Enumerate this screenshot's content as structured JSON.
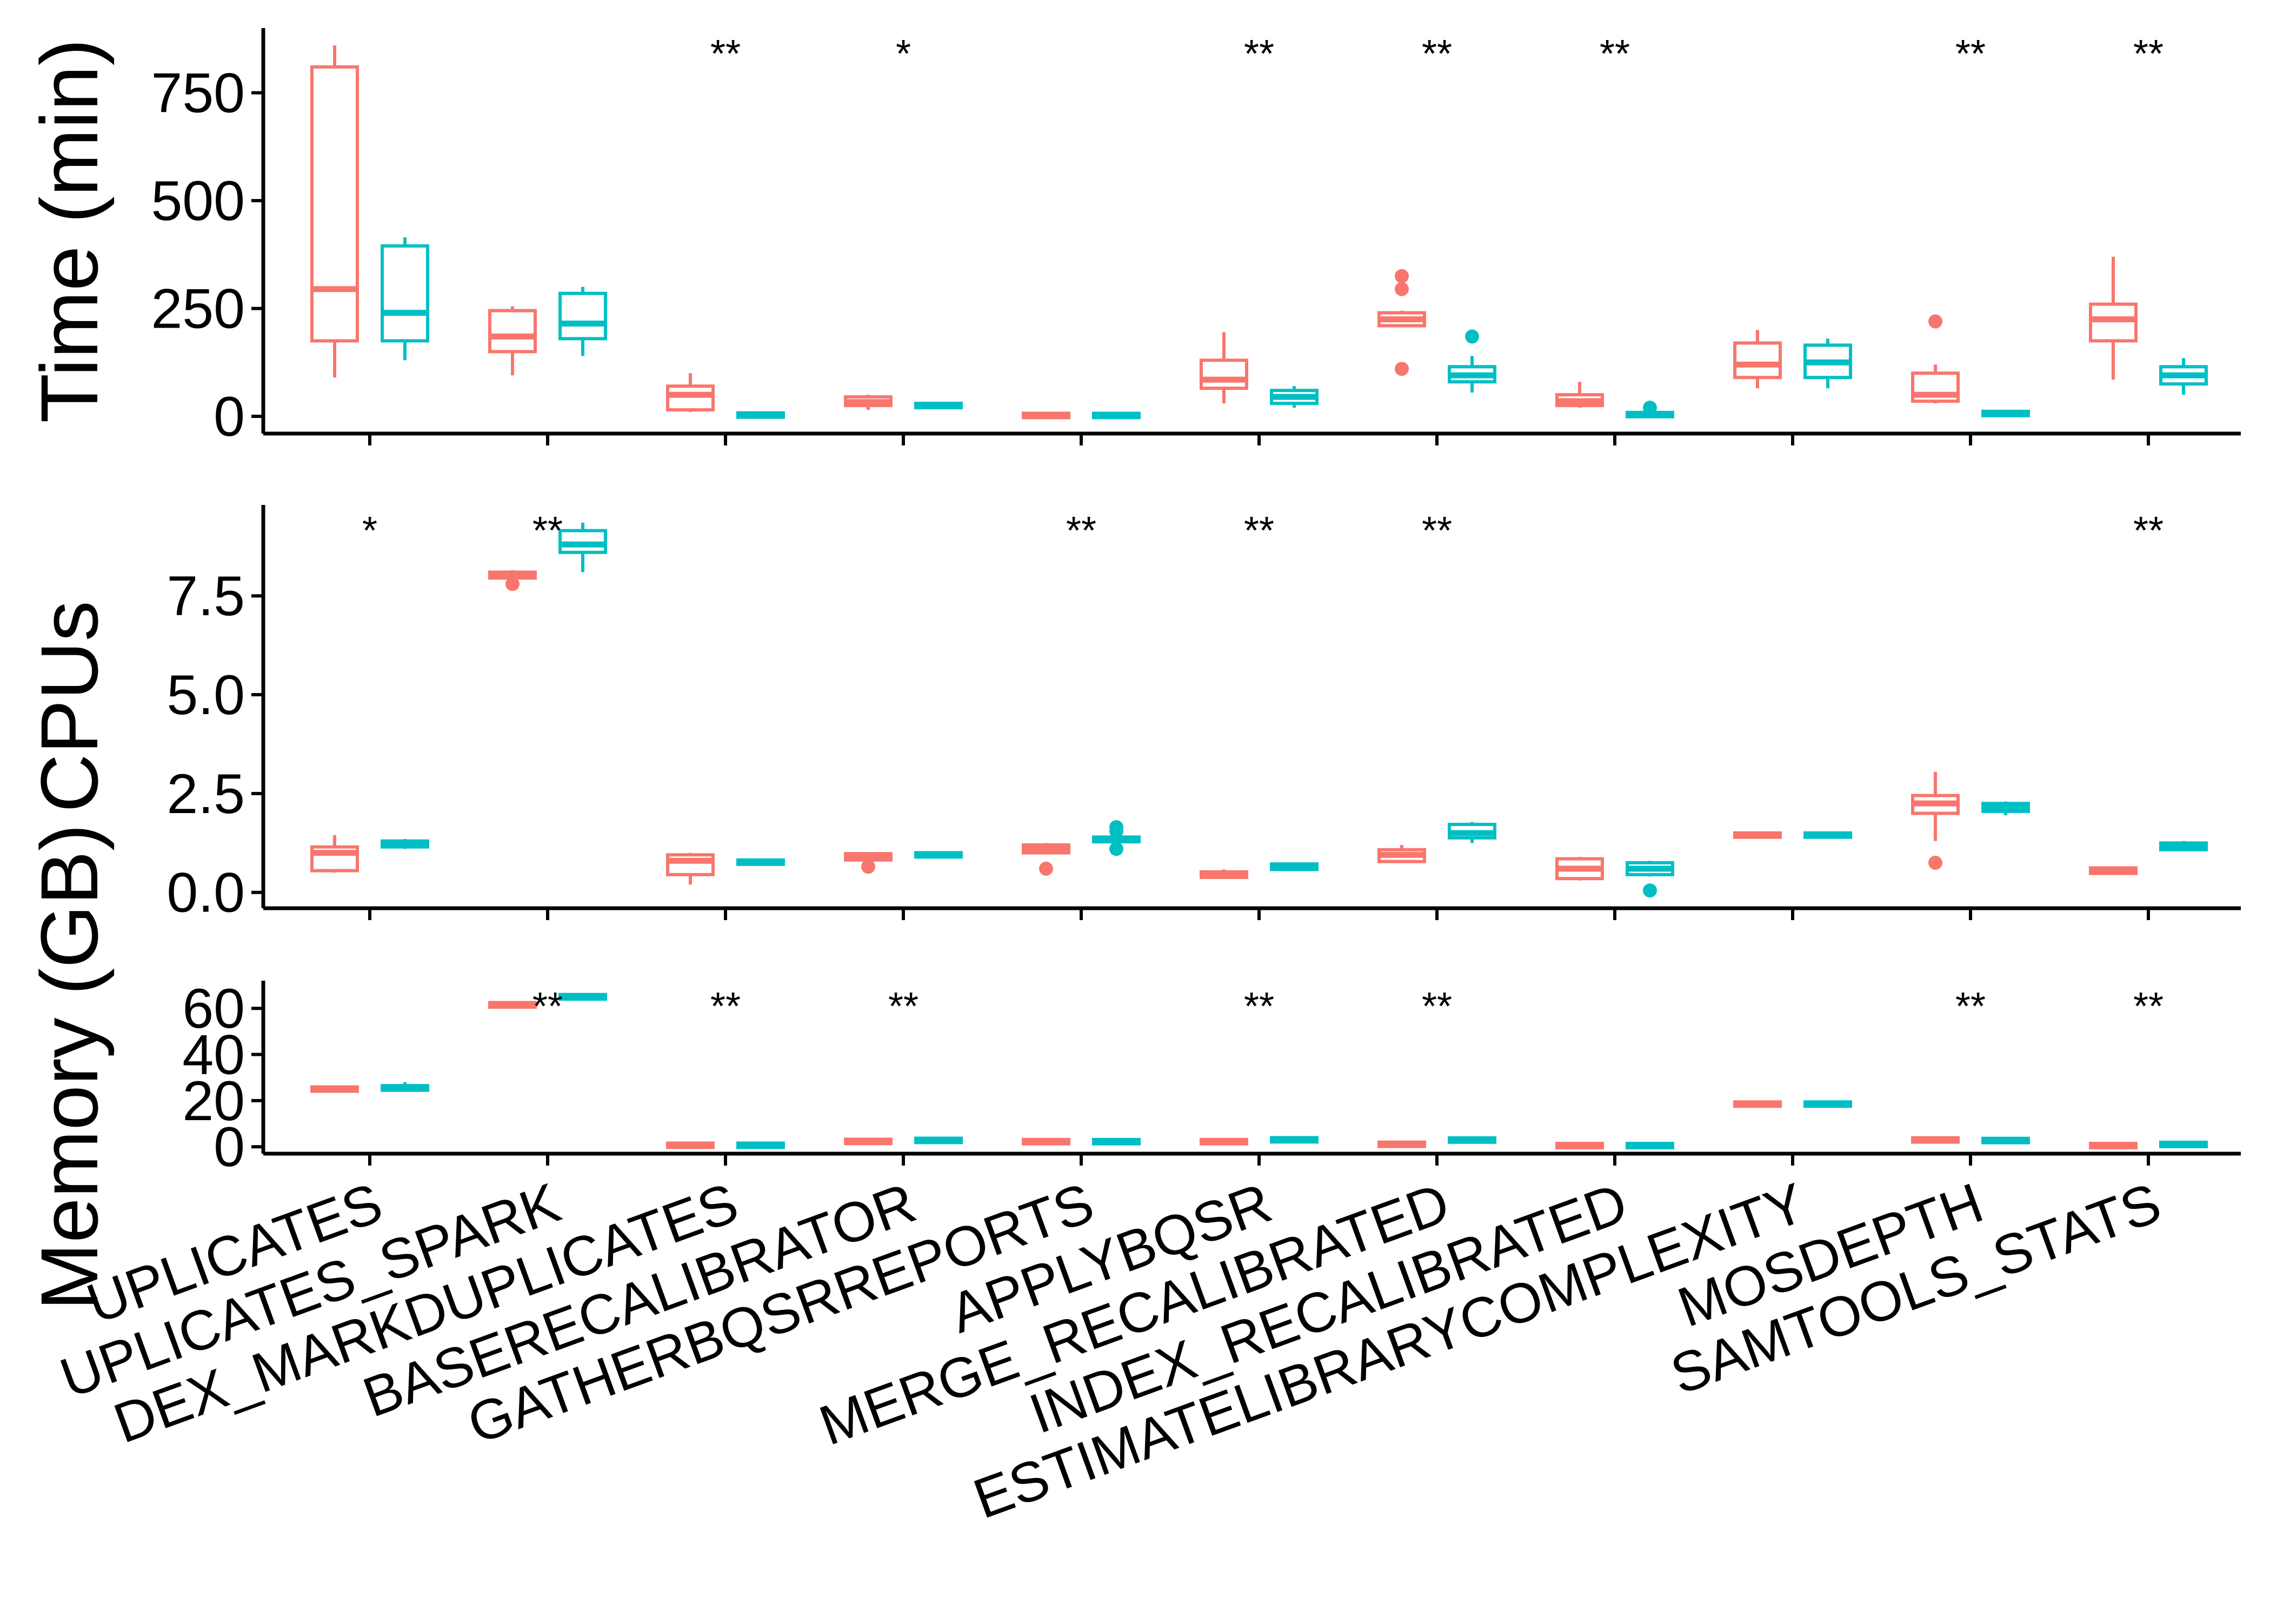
{
  "chart_data": {
    "type": "box",
    "categories": [
      "MARKDUPLICATES",
      "MARKDUPLICATES_SPARK",
      "INDEX_MARKDUPLICATES",
      "BASERECALIBRATOR",
      "GATHERBQSRREPORTS",
      "APPLYBQSR",
      "MERGE_RECALIBRATED",
      "INDEX_RECALIBRATED",
      "ESTIMATELIBRARYCOMPLEXITY",
      "MOSDEPTH",
      "SAMTOOLS_STATS"
    ],
    "category_labels_visible": [
      "UPLICATES",
      "UPLICATES_SPARK",
      "DEX_MARKDUPLICATES",
      "BASERECALIBRATOR",
      "GATHERBQSRREPORTS",
      "APPLYBQSR",
      "MERGE_RECALIBRATED",
      "INDEX_RECALIBRATED",
      "ESTIMATELIBRARYCOMPLEXITY",
      "MOSDEPTH",
      "SAMTOOLS_STATS"
    ],
    "series_colors": [
      "#F8766D",
      "#00BFC4"
    ],
    "panels": [
      {
        "ylabel": "Time (min)",
        "ylim": [
          -40,
          900
        ],
        "yticks": [
          0,
          250,
          500,
          750
        ],
        "ytick_labels": [
          "0",
          "250",
          "500",
          "750"
        ],
        "significance": [
          "",
          "",
          "**",
          "*",
          "",
          "**",
          "**",
          "**",
          "",
          "**",
          "**"
        ],
        "boxes": [
          [
            {
              "min": 90,
              "q1": 175,
              "median": 295,
              "q3": 810,
              "max": 860,
              "outliers": []
            },
            {
              "min": 130,
              "q1": 175,
              "median": 240,
              "q3": 395,
              "max": 415,
              "outliers": []
            }
          ],
          [
            {
              "min": 95,
              "q1": 150,
              "median": 185,
              "q3": 245,
              "max": 255,
              "outliers": []
            },
            {
              "min": 140,
              "q1": 180,
              "median": 215,
              "q3": 285,
              "max": 300,
              "outliers": []
            }
          ],
          [
            {
              "min": 10,
              "q1": 15,
              "median": 50,
              "q3": 70,
              "max": 100,
              "outliers": []
            },
            {
              "min": 0,
              "q1": 0,
              "median": 3,
              "q3": 6,
              "max": 10,
              "outliers": []
            }
          ],
          [
            {
              "min": 15,
              "q1": 25,
              "median": 33,
              "q3": 45,
              "max": 50,
              "outliers": []
            },
            {
              "min": 20,
              "q1": 22,
              "median": 25,
              "q3": 28,
              "max": 30,
              "outliers": []
            }
          ],
          [
            {
              "min": 0,
              "q1": 0,
              "median": 2,
              "q3": 4,
              "max": 5,
              "outliers": []
            },
            {
              "min": 0,
              "q1": 0,
              "median": 2,
              "q3": 4,
              "max": 5,
              "outliers": []
            }
          ],
          [
            {
              "min": 30,
              "q1": 65,
              "median": 85,
              "q3": 130,
              "max": 195,
              "outliers": []
            },
            {
              "min": 20,
              "q1": 30,
              "median": 45,
              "q3": 60,
              "max": 70,
              "outliers": []
            }
          ],
          [
            {
              "min": 210,
              "q1": 210,
              "median": 225,
              "q3": 240,
              "max": 245,
              "outliers": [
                325,
                295,
                110
              ]
            },
            {
              "min": 55,
              "q1": 80,
              "median": 95,
              "q3": 115,
              "max": 140,
              "outliers": [
                185
              ]
            }
          ],
          [
            {
              "min": 20,
              "q1": 25,
              "median": 35,
              "q3": 50,
              "max": 80,
              "outliers": []
            },
            {
              "min": 0,
              "q1": 0,
              "median": 4,
              "q3": 8,
              "max": 10,
              "outliers": [
                20
              ]
            }
          ],
          [
            {
              "min": 65,
              "q1": 90,
              "median": 120,
              "q3": 170,
              "max": 200,
              "outliers": []
            },
            {
              "min": 65,
              "q1": 90,
              "median": 125,
              "q3": 165,
              "max": 180,
              "outliers": []
            }
          ],
          [
            {
              "min": 30,
              "q1": 35,
              "median": 50,
              "q3": 100,
              "max": 120,
              "outliers": [
                220
              ]
            },
            {
              "min": 0,
              "q1": 3,
              "median": 6,
              "q3": 10,
              "max": 15,
              "outliers": []
            }
          ],
          [
            {
              "min": 85,
              "q1": 175,
              "median": 225,
              "q3": 260,
              "max": 370,
              "outliers": []
            },
            {
              "min": 50,
              "q1": 75,
              "median": 95,
              "q3": 115,
              "max": 135,
              "outliers": []
            }
          ]
        ]
      },
      {
        "ylabel": "CPUs",
        "ylim": [
          -0.4,
          9.8
        ],
        "yticks": [
          0,
          2.5,
          5,
          7.5
        ],
        "ytick_labels": [
          "0.0",
          "2.5",
          "5.0",
          "7.5"
        ],
        "significance": [
          "*",
          "**",
          "",
          "",
          "**",
          "**",
          "**",
          "",
          "",
          "",
          "**"
        ],
        "boxes": [
          [
            {
              "min": 0.5,
              "q1": 0.55,
              "median": 1.0,
              "q3": 1.15,
              "max": 1.45,
              "outliers": []
            },
            {
              "min": 1.1,
              "q1": 1.15,
              "median": 1.25,
              "q3": 1.3,
              "max": 1.35,
              "outliers": []
            }
          ],
          [
            {
              "min": 7.9,
              "q1": 7.95,
              "median": 8.0,
              "q3": 8.1,
              "max": 8.15,
              "outliers": [
                7.8
              ]
            },
            {
              "min": 8.1,
              "q1": 8.6,
              "median": 8.8,
              "q3": 9.15,
              "max": 9.35,
              "outliers": []
            }
          ],
          [
            {
              "min": 0.2,
              "q1": 0.45,
              "median": 0.8,
              "q3": 0.95,
              "max": 1.0,
              "outliers": []
            },
            {
              "min": 0.7,
              "q1": 0.73,
              "median": 0.76,
              "q3": 0.8,
              "max": 0.82,
              "outliers": []
            }
          ],
          [
            {
              "min": 0.8,
              "q1": 0.82,
              "median": 0.9,
              "q3": 0.98,
              "max": 1.0,
              "outliers": [
                0.65
              ]
            },
            {
              "min": 0.9,
              "q1": 0.92,
              "median": 0.95,
              "q3": 0.98,
              "max": 1.0,
              "outliers": []
            }
          ],
          [
            {
              "min": 1.0,
              "q1": 1.0,
              "median": 1.1,
              "q3": 1.2,
              "max": 1.25,
              "outliers": [
                0.6
              ]
            },
            {
              "min": 1.25,
              "q1": 1.28,
              "median": 1.35,
              "q3": 1.4,
              "max": 1.45,
              "outliers": [
                1.1,
                1.55,
                1.65
              ]
            }
          ],
          [
            {
              "min": 0.35,
              "q1": 0.38,
              "median": 0.45,
              "q3": 0.52,
              "max": 0.58,
              "outliers": []
            },
            {
              "min": 0.55,
              "q1": 0.58,
              "median": 0.65,
              "q3": 0.72,
              "max": 0.75,
              "outliers": []
            }
          ],
          [
            {
              "min": 0.75,
              "q1": 0.78,
              "median": 0.95,
              "q3": 1.08,
              "max": 1.2,
              "outliers": []
            },
            {
              "min": 1.25,
              "q1": 1.38,
              "median": 1.5,
              "q3": 1.72,
              "max": 1.78,
              "outliers": []
            }
          ],
          [
            {
              "min": 0.3,
              "q1": 0.35,
              "median": 0.6,
              "q3": 0.85,
              "max": 0.9,
              "outliers": []
            },
            {
              "min": 0.4,
              "q1": 0.45,
              "median": 0.6,
              "q3": 0.75,
              "max": 0.8,
              "outliers": [
                0.05
              ]
            }
          ],
          [
            {
              "min": 1.4,
              "q1": 1.42,
              "median": 1.45,
              "q3": 1.48,
              "max": 1.5,
              "outliers": []
            },
            {
              "min": 1.4,
              "q1": 1.42,
              "median": 1.45,
              "q3": 1.48,
              "max": 1.5,
              "outliers": []
            }
          ],
          [
            {
              "min": 1.3,
              "q1": 2.0,
              "median": 2.25,
              "q3": 2.45,
              "max": 3.05,
              "outliers": [
                0.75
              ]
            },
            {
              "min": 1.95,
              "q1": 2.05,
              "median": 2.15,
              "q3": 2.25,
              "max": 2.3,
              "outliers": []
            }
          ],
          [
            {
              "min": 0.45,
              "q1": 0.48,
              "median": 0.55,
              "q3": 0.62,
              "max": 0.65,
              "outliers": []
            },
            {
              "min": 1.05,
              "q1": 1.08,
              "median": 1.15,
              "q3": 1.25,
              "max": 1.3,
              "outliers": []
            }
          ]
        ]
      },
      {
        "ylabel": "Memory (GB)",
        "ylim": [
          -3,
          72
        ],
        "yticks": [
          0,
          20,
          40,
          60
        ],
        "ytick_labels": [
          "0",
          "20",
          "40",
          "60"
        ],
        "significance": [
          "",
          "**",
          "**",
          "**",
          "",
          "**",
          "**",
          "",
          "",
          "**",
          "**"
        ],
        "boxes": [
          [
            {
              "min": 24,
              "q1": 24.5,
              "median": 25,
              "q3": 25.5,
              "max": 26,
              "outliers": []
            },
            {
              "min": 24,
              "q1": 24.5,
              "median": 25.5,
              "q3": 26.5,
              "max": 28,
              "outliers": []
            }
          ],
          [
            {
              "min": 60,
              "q1": 60.5,
              "median": 61.5,
              "q3": 62.5,
              "max": 63,
              "outliers": []
            },
            {
              "min": 63.5,
              "q1": 64,
              "median": 65,
              "q3": 66,
              "max": 66.5,
              "outliers": []
            }
          ],
          [
            {
              "min": 0,
              "q1": 0.3,
              "median": 0.6,
              "q3": 1,
              "max": 1.2,
              "outliers": []
            },
            {
              "min": 0,
              "q1": 0.3,
              "median": 0.6,
              "q3": 1,
              "max": 1.2,
              "outliers": []
            }
          ],
          [
            {
              "min": 1.5,
              "q1": 1.8,
              "median": 2.3,
              "q3": 2.8,
              "max": 3,
              "outliers": []
            },
            {
              "min": 2,
              "q1": 2.3,
              "median": 2.8,
              "q3": 3.2,
              "max": 3.5,
              "outliers": []
            }
          ],
          [
            {
              "min": 1.5,
              "q1": 1.8,
              "median": 2.2,
              "q3": 2.6,
              "max": 2.8,
              "outliers": []
            },
            {
              "min": 1.5,
              "q1": 1.8,
              "median": 2.2,
              "q3": 2.6,
              "max": 2.8,
              "outliers": []
            }
          ],
          [
            {
              "min": 1.5,
              "q1": 1.8,
              "median": 2.2,
              "q3": 2.6,
              "max": 2.8,
              "outliers": []
            },
            {
              "min": 2.3,
              "q1": 2.6,
              "median": 3,
              "q3": 3.4,
              "max": 3.6,
              "outliers": []
            }
          ],
          [
            {
              "min": 0.5,
              "q1": 0.7,
              "median": 1,
              "q3": 1.4,
              "max": 1.6,
              "outliers": []
            },
            {
              "min": 2.2,
              "q1": 2.5,
              "median": 2.9,
              "q3": 3.3,
              "max": 3.6,
              "outliers": []
            }
          ],
          [
            {
              "min": 0,
              "q1": 0.2,
              "median": 0.5,
              "q3": 0.8,
              "max": 1,
              "outliers": []
            },
            {
              "min": 0,
              "q1": 0.2,
              "median": 0.5,
              "q3": 0.8,
              "max": 1,
              "outliers": []
            }
          ],
          [
            {
              "min": 17.5,
              "q1": 18,
              "median": 18.5,
              "q3": 19,
              "max": 19.3,
              "outliers": []
            },
            {
              "min": 17.5,
              "q1": 18,
              "median": 18.5,
              "q3": 19,
              "max": 19.3,
              "outliers": []
            }
          ],
          [
            {
              "min": 2.2,
              "q1": 2.5,
              "median": 3,
              "q3": 3.4,
              "max": 3.6,
              "outliers": []
            },
            {
              "min": 2,
              "q1": 2.3,
              "median": 2.7,
              "q3": 3.1,
              "max": 3.3,
              "outliers": []
            }
          ],
          [
            {
              "min": 0,
              "q1": 0.2,
              "median": 0.5,
              "q3": 0.8,
              "max": 1,
              "outliers": []
            },
            {
              "min": 0.5,
              "q1": 0.7,
              "median": 1,
              "q3": 1.3,
              "max": 1.5,
              "outliers": []
            }
          ]
        ]
      }
    ]
  }
}
